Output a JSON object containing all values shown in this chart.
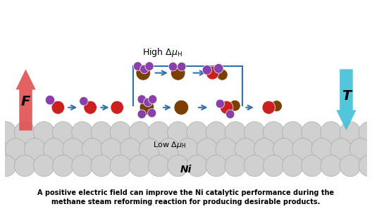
{
  "caption_line1": "A positive electric field can improve the Ni catalytic performance during the",
  "caption_line2": "methane steam reforming reaction for producing desirable products.",
  "F_label": "F",
  "T_label": "T",
  "high_label": "High Δμ_H",
  "low_label": "Low Δμ_H",
  "ni_label": "Ni",
  "arrow_color_F": "#E05050",
  "arrow_color_T": "#40C0D8",
  "arrow_color_reaction": "#3070B0",
  "sphere_color_ni": "#D0D0D0",
  "sphere_edge_ni": "#A0A0A0",
  "purple_atom": "#8B3FA8",
  "red_atom": "#CC2020",
  "brown_atom": "#7B3F00",
  "bg_color": "#FFFFFF"
}
